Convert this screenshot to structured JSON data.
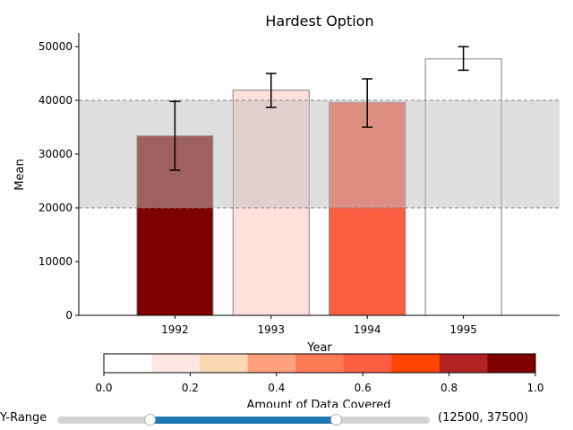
{
  "chart_data": {
    "type": "bar",
    "title": "Hardest Option",
    "xlabel": "Year",
    "ylabel": "Mean",
    "categories": [
      "1992",
      "1993",
      "1994",
      "1995"
    ],
    "values": [
      33400,
      41900,
      39600,
      47700
    ],
    "error_low": [
      27000,
      38700,
      35000,
      45600
    ],
    "error_high": [
      39800,
      45000,
      44000,
      50000
    ],
    "bar_colors": [
      "#7f0000",
      "#fee0dc",
      "#fd5e42",
      "#ffffff"
    ],
    "ylim": [
      0,
      52500
    ],
    "yticks": [
      0,
      10000,
      20000,
      30000,
      40000,
      50000
    ],
    "ytick_labels": [
      "0",
      "10000",
      "20000",
      "30000",
      "40000",
      "50000"
    ],
    "highlight_band": [
      20000,
      40000
    ],
    "band_color": "#bfbfbf",
    "colorbar": {
      "label": "Amount of Data Covered",
      "range": [
        0.0,
        1.0
      ],
      "ticks": [
        0.0,
        0.2,
        0.4,
        0.6,
        0.8,
        1.0
      ],
      "tick_labels": [
        "0.0",
        "0.2",
        "0.4",
        "0.6",
        "0.8",
        "1.0"
      ],
      "colors": [
        "#ffffff",
        "#fee7e2",
        "#fdd8b5",
        "#fca07e",
        "#fc7b55",
        "#fd5e42",
        "#ff4500",
        "#b22222",
        "#800000"
      ]
    }
  },
  "slider": {
    "label": "Y-Range",
    "min": 0,
    "max": 50000,
    "low": 12500,
    "high": 37500,
    "value_text": "(12500, 37500)"
  }
}
